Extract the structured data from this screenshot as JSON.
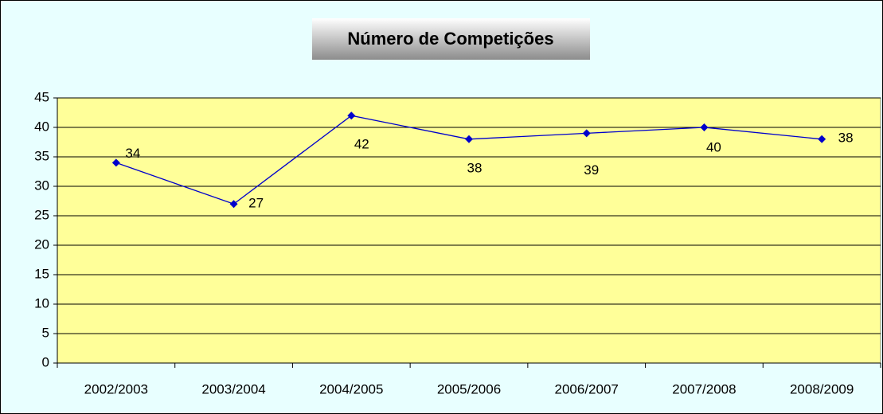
{
  "chart_data": {
    "type": "line",
    "title": "Número de Competições",
    "categories": [
      "2002/2003",
      "2003/2004",
      "2004/2005",
      "2005/2006",
      "2006/2007",
      "2007/2008",
      "2008/2009"
    ],
    "series": [
      {
        "name": "Competições",
        "color": "#0000cc",
        "values": [
          34,
          27,
          42,
          38,
          39,
          40,
          38
        ]
      }
    ],
    "ylim": [
      0,
      45
    ],
    "yticks": [
      0,
      5,
      10,
      15,
      20,
      25,
      30,
      35,
      40,
      45
    ],
    "grid": true
  }
}
